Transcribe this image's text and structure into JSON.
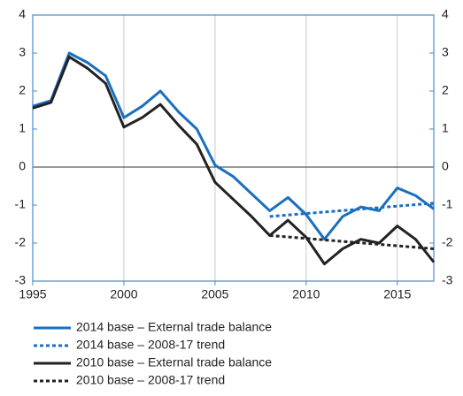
{
  "chart_data": {
    "type": "line",
    "x": [
      1995,
      1996,
      1997,
      1998,
      1999,
      2000,
      2001,
      2002,
      2003,
      2004,
      2005,
      2006,
      2007,
      2008,
      2009,
      2010,
      2011,
      2012,
      2013,
      2014,
      2015,
      2016,
      2017
    ],
    "series": [
      {
        "name": "2014 base – External trade balance",
        "color": "#1a6fc0",
        "dash": false,
        "values": [
          1.6,
          1.75,
          3.0,
          2.75,
          2.4,
          1.3,
          1.6,
          2.0,
          1.45,
          1.0,
          0.05,
          -0.25,
          -0.7,
          -1.15,
          -0.8,
          -1.25,
          -1.9,
          -1.3,
          -1.05,
          -1.15,
          -0.55,
          -0.75,
          -1.1
        ]
      },
      {
        "name": "2014 base – 2008-17 trend",
        "color": "#1a6fc0",
        "dash": true,
        "x": [
          2008,
          2017
        ],
        "values": [
          -1.3,
          -0.95
        ]
      },
      {
        "name": "2010 base – External trade balance",
        "color": "#222222",
        "dash": false,
        "values": [
          1.55,
          1.7,
          2.9,
          2.6,
          2.2,
          1.05,
          1.3,
          1.65,
          1.1,
          0.6,
          -0.4,
          -0.85,
          -1.3,
          -1.8,
          -1.4,
          -1.85,
          -2.55,
          -2.15,
          -1.9,
          -2.0,
          -1.55,
          -1.9,
          -2.5
        ]
      },
      {
        "name": "2010 base – 2008-17 trend",
        "color": "#222222",
        "dash": true,
        "x": [
          2008,
          2017
        ],
        "values": [
          -1.8,
          -2.15
        ]
      }
    ],
    "xlim": [
      1995,
      2017
    ],
    "xticks": [
      1995,
      2000,
      2005,
      2010,
      2015
    ],
    "ylim": [
      -3,
      4
    ],
    "yticks": [
      -3,
      -2,
      -1,
      0,
      1,
      2,
      3,
      4
    ],
    "y2lim": [
      -3,
      4
    ],
    "y2ticks": [
      -3,
      -2,
      -1,
      0,
      1,
      2,
      3,
      4
    ],
    "grid": "x",
    "zero_line": true
  }
}
